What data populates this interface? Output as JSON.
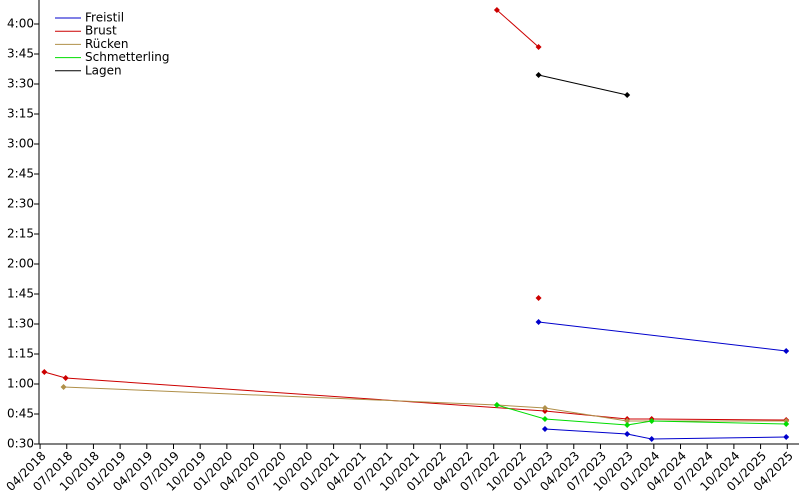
{
  "chart_data": {
    "type": "line",
    "xlim": [
      2018.24,
      2025.36
    ],
    "xticks": [
      {
        "value": 2018.25,
        "label": "04/2018"
      },
      {
        "value": 2018.5,
        "label": "07/2018"
      },
      {
        "value": 2018.75,
        "label": "10/2018"
      },
      {
        "value": 2019.0,
        "label": "01/2019"
      },
      {
        "value": 2019.25,
        "label": "04/2019"
      },
      {
        "value": 2019.5,
        "label": "07/2019"
      },
      {
        "value": 2019.75,
        "label": "10/2019"
      },
      {
        "value": 2020.0,
        "label": "01/2020"
      },
      {
        "value": 2020.25,
        "label": "04/2020"
      },
      {
        "value": 2020.5,
        "label": "07/2020"
      },
      {
        "value": 2020.75,
        "label": "10/2020"
      },
      {
        "value": 2021.0,
        "label": "01/2021"
      },
      {
        "value": 2021.25,
        "label": "04/2021"
      },
      {
        "value": 2021.5,
        "label": "07/2021"
      },
      {
        "value": 2021.75,
        "label": "10/2021"
      },
      {
        "value": 2022.0,
        "label": "01/2022"
      },
      {
        "value": 2022.25,
        "label": "04/2022"
      },
      {
        "value": 2022.5,
        "label": "07/2022"
      },
      {
        "value": 2022.75,
        "label": "10/2022"
      },
      {
        "value": 2023.0,
        "label": "01/2023"
      },
      {
        "value": 2023.25,
        "label": "04/2023"
      },
      {
        "value": 2023.5,
        "label": "07/2023"
      },
      {
        "value": 2023.75,
        "label": "10/2023"
      },
      {
        "value": 2024.0,
        "label": "01/2024"
      },
      {
        "value": 2024.25,
        "label": "04/2024"
      },
      {
        "value": 2024.5,
        "label": "07/2024"
      },
      {
        "value": 2024.75,
        "label": "10/2024"
      },
      {
        "value": 2025.0,
        "label": "01/2025"
      },
      {
        "value": 2025.25,
        "label": "04/2025"
      }
    ],
    "ylim": [
      30,
      252
    ],
    "yticks": [
      {
        "value": 30,
        "label": "0:30"
      },
      {
        "value": 45,
        "label": "0:45"
      },
      {
        "value": 60,
        "label": "1:00"
      },
      {
        "value": 75,
        "label": "1:15"
      },
      {
        "value": 90,
        "label": "1:30"
      },
      {
        "value": 105,
        "label": "1:45"
      },
      {
        "value": 120,
        "label": "2:00"
      },
      {
        "value": 135,
        "label": "2:15"
      },
      {
        "value": 150,
        "label": "2:30"
      },
      {
        "value": 165,
        "label": "2:45"
      },
      {
        "value": 180,
        "label": "3:00"
      },
      {
        "value": 195,
        "label": "3:15"
      },
      {
        "value": 210,
        "label": "3:30"
      },
      {
        "value": 225,
        "label": "3:45"
      },
      {
        "value": 240,
        "label": "4:00"
      }
    ],
    "legend": "upper left",
    "series": [
      {
        "name": "Freistil",
        "color": "#0000cc",
        "x": [
          2022.98,
          2023.75,
          2023.98,
          2025.24,
          null,
          2022.92,
          2025.24
        ],
        "values": [
          37.5,
          35,
          32.5,
          33.5,
          null,
          91,
          76.5
        ]
      },
      {
        "name": "Brust",
        "color": "#cc0000",
        "x": [
          2018.29,
          2018.49,
          2022.98,
          2023.75,
          2023.98,
          2025.24,
          null,
          2022.92,
          null,
          2022.53,
          2022.92
        ],
        "values": [
          66,
          63,
          46.5,
          42.5,
          42.5,
          42,
          null,
          103,
          null,
          247,
          228.5
        ]
      },
      {
        "name": "Rücken",
        "color": "#b0904a",
        "x": [
          2018.47,
          2022.53,
          2022.98,
          2023.75,
          2025.24
        ],
        "values": [
          58.5,
          49.5,
          48,
          41.5,
          41.5
        ]
      },
      {
        "name": "Schmetterling",
        "color": "#00dd00",
        "x": [
          2022.53,
          2022.98,
          2023.75,
          2023.98,
          2025.24
        ],
        "values": [
          49.5,
          42.5,
          39.5,
          41.5,
          40
        ]
      },
      {
        "name": "Lagen",
        "color": "#000000",
        "x": [
          2022.92,
          2023.75
        ],
        "values": [
          214.5,
          204.5
        ]
      }
    ]
  }
}
